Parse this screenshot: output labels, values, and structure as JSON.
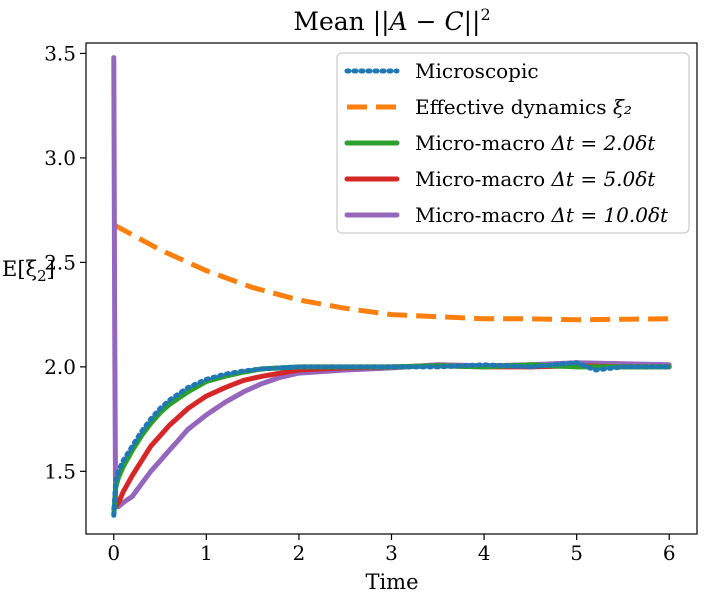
{
  "chart_data": {
    "type": "line",
    "title_prefix": "Mean ",
    "title_math": "||A − C||",
    "title_sup": "2",
    "xlabel": "Time",
    "ylabel_main": "E[ξ",
    "ylabel_sub": "2",
    "ylabel_close": "]",
    "xlim": [
      -0.3,
      6.3
    ],
    "ylim": [
      1.2,
      3.55
    ],
    "xticks": [
      0,
      1,
      2,
      3,
      4,
      5,
      6
    ],
    "xtick_labels": [
      "0",
      "1",
      "2",
      "3",
      "4",
      "5",
      "6"
    ],
    "yticks": [
      1.5,
      2.0,
      2.5,
      3.0,
      3.5
    ],
    "ytick_labels": [
      "1.5",
      "2.0",
      "2.5",
      "3.0",
      "3.5"
    ],
    "grid": false,
    "legend_position": "top-right",
    "series": [
      {
        "name": "Microscopic",
        "legend_math": "",
        "color": "#1f77b4",
        "style": "dotted",
        "x": [
          0.0,
          0.02,
          0.05,
          0.1,
          0.2,
          0.3,
          0.4,
          0.5,
          0.6,
          0.8,
          1.0,
          1.2,
          1.4,
          1.6,
          1.8,
          2.0,
          2.5,
          3.0,
          3.5,
          4.0,
          4.5,
          5.0,
          5.2,
          5.5,
          6.0
        ],
        "y": [
          1.29,
          1.45,
          1.5,
          1.55,
          1.62,
          1.69,
          1.75,
          1.8,
          1.84,
          1.9,
          1.94,
          1.965,
          1.98,
          1.99,
          1.995,
          2.0,
          2.0,
          2.0,
          2.0,
          2.01,
          2.0,
          2.02,
          1.985,
          2.0,
          2.0
        ]
      },
      {
        "name": "Effective dynamics ",
        "legend_math": "ξ₂",
        "color": "#ff7f0e",
        "style": "dashed",
        "x": [
          0.0,
          0.5,
          1.0,
          1.5,
          2.0,
          2.5,
          3.0,
          3.5,
          4.0,
          4.5,
          5.0,
          5.5,
          6.0
        ],
        "y": [
          2.68,
          2.56,
          2.46,
          2.38,
          2.32,
          2.28,
          2.25,
          2.24,
          2.23,
          2.23,
          2.225,
          2.228,
          2.23
        ]
      },
      {
        "name": "Micro-macro ",
        "legend_math": "Δt = 2.0δt",
        "color": "#2ca02c",
        "style": "solid",
        "x": [
          0.0,
          0.02,
          0.05,
          0.1,
          0.2,
          0.3,
          0.4,
          0.5,
          0.6,
          0.8,
          1.0,
          1.2,
          1.4,
          1.6,
          1.8,
          2.0,
          2.5,
          3.0,
          3.5,
          4.0,
          4.5,
          5.0,
          5.5,
          6.0
        ],
        "y": [
          1.29,
          1.42,
          1.47,
          1.52,
          1.6,
          1.67,
          1.73,
          1.78,
          1.82,
          1.88,
          1.93,
          1.955,
          1.975,
          1.99,
          1.995,
          2.0,
          2.0,
          2.0,
          2.005,
          2.0,
          2.01,
          2.0,
          2.0,
          2.0
        ]
      },
      {
        "name": "Micro-macro ",
        "legend_math": "Δt = 5.0δt",
        "color": "#d62728",
        "style": "solid",
        "x": [
          0.0,
          0.05,
          0.1,
          0.2,
          0.3,
          0.4,
          0.5,
          0.6,
          0.7,
          0.8,
          1.0,
          1.2,
          1.4,
          1.6,
          1.8,
          2.0,
          2.5,
          3.0,
          3.5,
          4.0,
          4.5,
          5.0,
          5.5,
          6.0
        ],
        "y": [
          1.32,
          1.35,
          1.4,
          1.48,
          1.55,
          1.62,
          1.67,
          1.72,
          1.76,
          1.8,
          1.86,
          1.9,
          1.935,
          1.955,
          1.97,
          1.985,
          1.995,
          2.0,
          2.005,
          2.0,
          2.0,
          2.005,
          2.0,
          2.0
        ]
      },
      {
        "name": "Micro-macro ",
        "legend_math": "Δt = 10.0δt",
        "color": "#9467bd",
        "style": "solid",
        "x": [
          0.0,
          0.01,
          0.02,
          0.05,
          0.1,
          0.2,
          0.3,
          0.4,
          0.5,
          0.6,
          0.7,
          0.8,
          1.0,
          1.2,
          1.4,
          1.6,
          1.8,
          2.0,
          2.5,
          3.0,
          3.5,
          4.0,
          4.5,
          5.0,
          5.5,
          6.0
        ],
        "y": [
          3.48,
          2.2,
          1.33,
          1.33,
          1.35,
          1.38,
          1.44,
          1.5,
          1.55,
          1.6,
          1.65,
          1.7,
          1.77,
          1.83,
          1.88,
          1.92,
          1.95,
          1.97,
          1.985,
          1.995,
          2.01,
          2.005,
          2.01,
          2.02,
          2.015,
          2.01
        ]
      }
    ]
  }
}
